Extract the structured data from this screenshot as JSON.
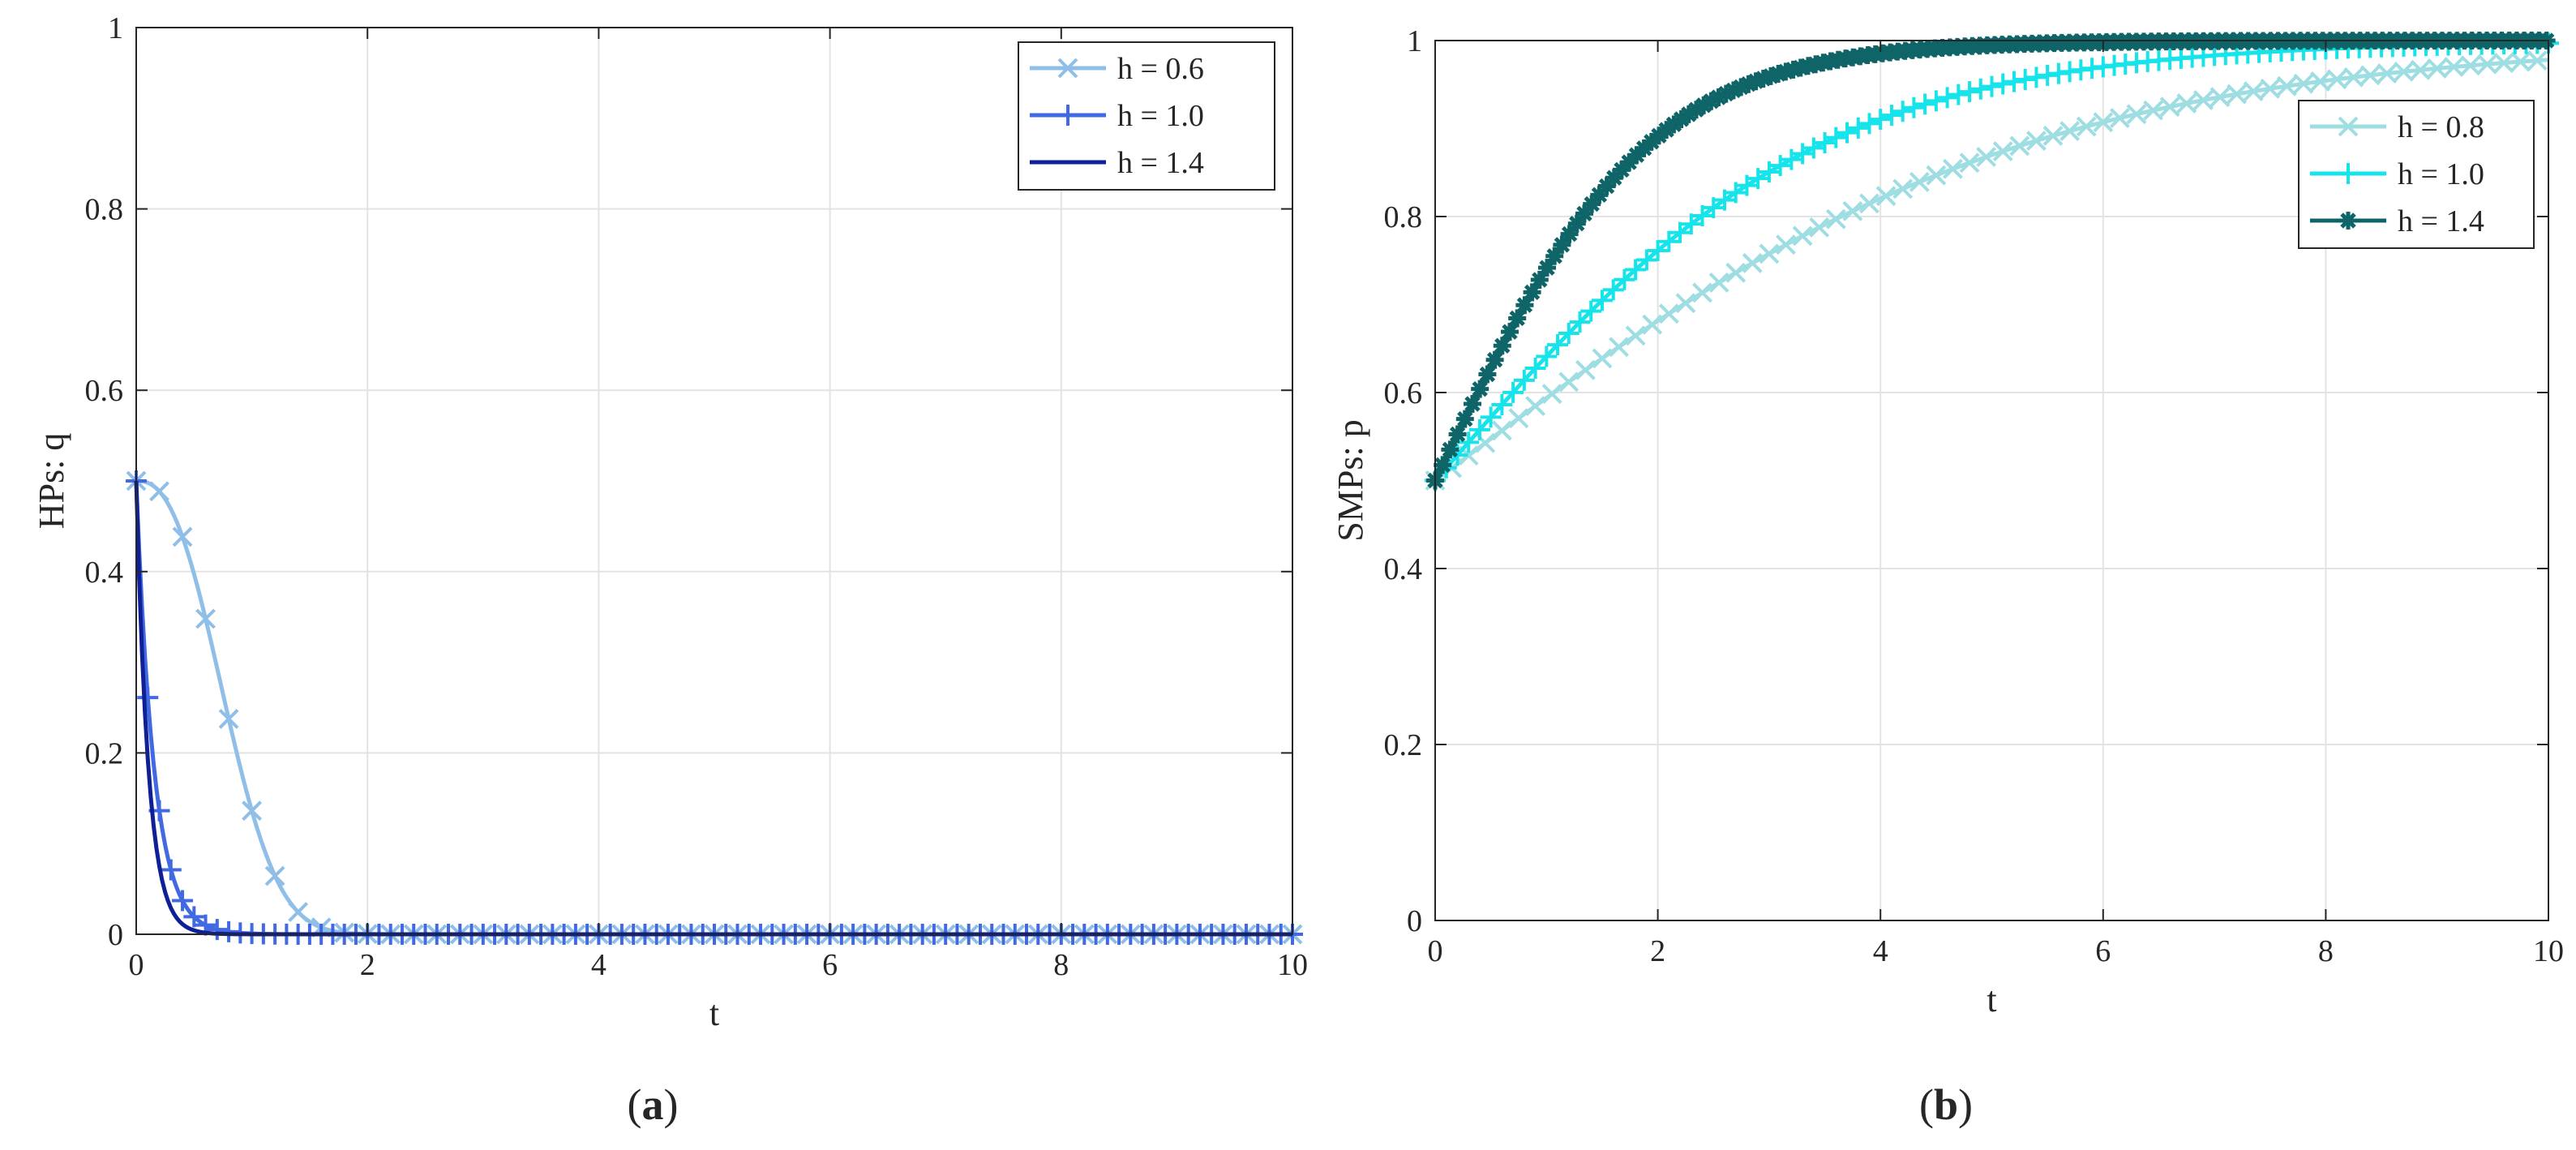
{
  "figure": {
    "panels": [
      "(a)",
      "(b)"
    ]
  },
  "chart_data": [
    {
      "type": "line",
      "panel_label": "(a)",
      "xlabel": "t",
      "ylabel": "HPs: q",
      "xlim": [
        0,
        10
      ],
      "ylim": [
        0,
        1
      ],
      "xticks": [
        0,
        2,
        4,
        6,
        8,
        10
      ],
      "yticks": [
        0,
        0.2,
        0.4,
        0.6,
        0.8,
        1
      ],
      "xtick_labels": [
        "0",
        "2",
        "4",
        "6",
        "8",
        "10"
      ],
      "ytick_labels": [
        "0",
        "0.2",
        "0.4",
        "0.6",
        "0.8",
        "1"
      ],
      "grid": true,
      "legend_position": "top-right",
      "series": [
        {
          "name": "h = 0.6",
          "color": "#8fbfe8",
          "marker": "x",
          "model": "decay",
          "y0": 0.5,
          "k": 1.3,
          "n": 2.5,
          "t_end": 10,
          "marker_step": 0.2
        },
        {
          "name": "h = 1.0",
          "color": "#4169e1",
          "marker": "+",
          "model": "decay",
          "y0": 0.5,
          "k": 6.5,
          "n": 1.0,
          "t_end": 10,
          "marker_step": 0.1
        },
        {
          "name": "h = 1.4",
          "color": "#0f1f96",
          "marker": "none",
          "model": "decay",
          "y0": 0.5,
          "k": 9.5,
          "n": 1.0,
          "t_end": 10,
          "marker_step": 0
        }
      ]
    },
    {
      "type": "line",
      "panel_label": "(b)",
      "xlabel": "t",
      "ylabel": "SMPs: p",
      "xlim": [
        0,
        10
      ],
      "ylim": [
        0,
        1
      ],
      "xticks": [
        0,
        2,
        4,
        6,
        8,
        10
      ],
      "yticks": [
        0,
        0.2,
        0.4,
        0.6,
        0.8,
        1
      ],
      "xtick_labels": [
        "0",
        "2",
        "4",
        "6",
        "8",
        "10"
      ],
      "ytick_labels": [
        "0",
        "0.2",
        "0.4",
        "0.6",
        "0.8",
        "1"
      ],
      "grid": true,
      "legend_position": "right",
      "series": [
        {
          "name": "h = 0.8",
          "color": "#9edde2",
          "marker": "x",
          "model": "logistic",
          "y0": 0.5,
          "k": 0.38,
          "t_end": 10,
          "marker_step": 0.15
        },
        {
          "name": "h = 1.0",
          "color": "#17e3ea",
          "marker": "+",
          "model": "logistic",
          "y0": 0.5,
          "k": 0.58,
          "t_end": 10,
          "marker_step": 0.1
        },
        {
          "name": "h = 1.4",
          "color": "#0e6467",
          "marker": "*",
          "model": "logistic",
          "y0": 0.5,
          "k": 1.05,
          "t_end": 10,
          "marker_step": 0.067
        }
      ]
    }
  ]
}
